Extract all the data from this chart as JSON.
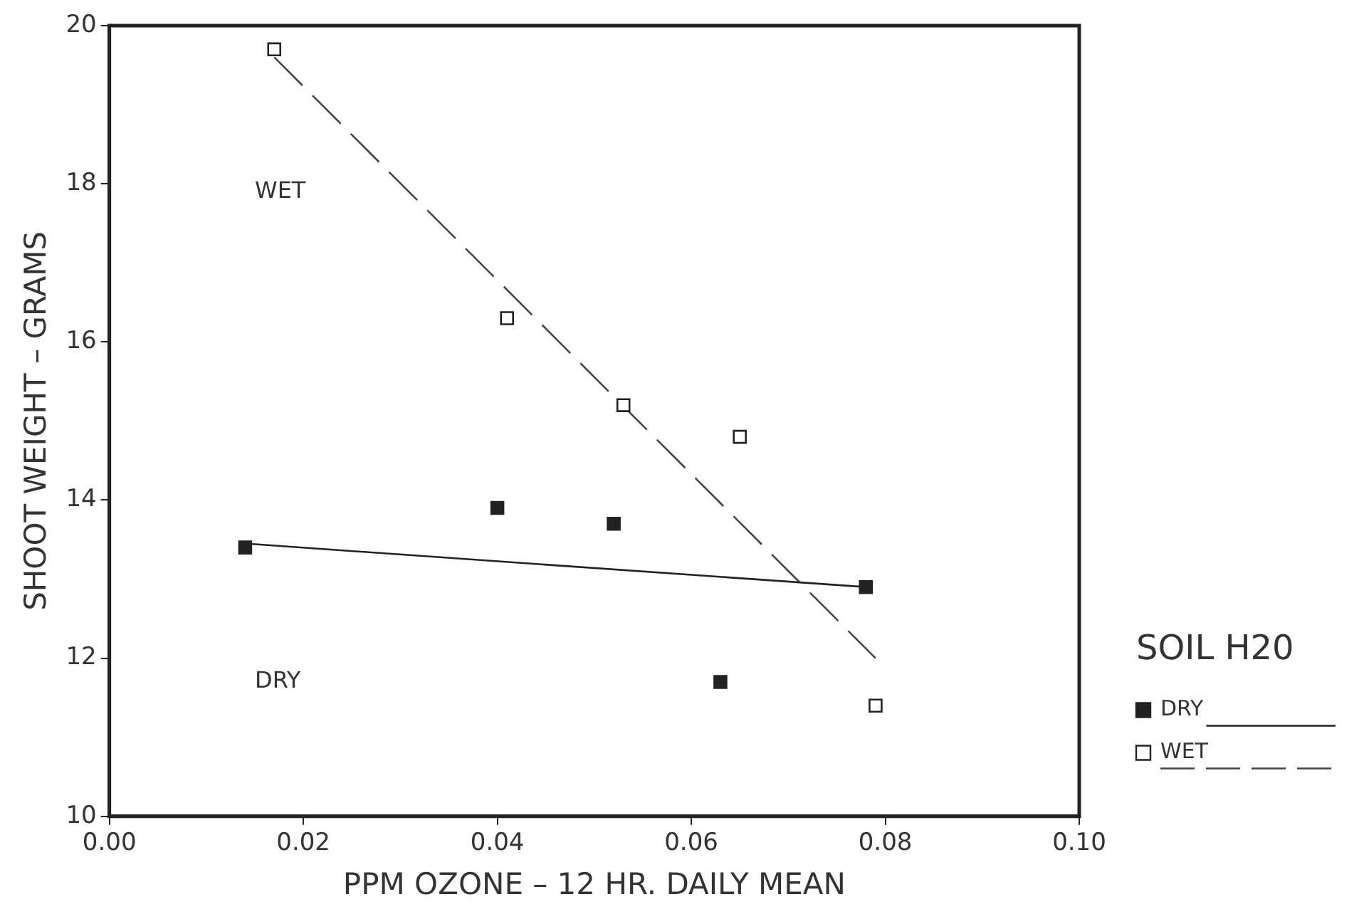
{
  "chart_data": {
    "type": "scatter",
    "xlabel": "PPM OZONE – 12 HR. DAILY MEAN",
    "ylabel": "SHOOT WEIGHT – GRAMS",
    "legend_title": "SOIL H20",
    "legend": "right",
    "grid": false,
    "marker": "square",
    "xlim": [
      0,
      0.1
    ],
    "xticks": [
      {
        "value": 0,
        "label": "0.00"
      },
      {
        "value": 0.02,
        "label": "0.02"
      },
      {
        "value": 0.04,
        "label": "0.04"
      },
      {
        "value": 0.06,
        "label": "0.06"
      },
      {
        "value": 0.08,
        "label": "0.08"
      },
      {
        "value": 0.1,
        "label": "0.10"
      }
    ],
    "ylim": [
      10,
      20
    ],
    "yticks": [
      10,
      12,
      14,
      16,
      18,
      20
    ],
    "series": [
      {
        "name": "DRY",
        "color": "#222222",
        "x": [
          0.014,
          0.04,
          0.052,
          0.063,
          0.078
        ],
        "values": [
          13.4,
          13.9,
          13.7,
          11.7,
          12.9
        ]
      },
      {
        "name": "WET",
        "color": "#ffffff",
        "x": [
          0.017,
          0.041,
          0.053,
          0.065,
          0.079
        ],
        "values": [
          19.7,
          16.3,
          15.2,
          14.8,
          11.4
        ]
      },
      {
        "type": "line",
        "color": "#222222",
        "line_style": "solid",
        "marker": "none",
        "x": [
          0.014,
          0.078
        ],
        "values": [
          13.45,
          12.9
        ]
      },
      {
        "type": "line",
        "color": "#444444",
        "line_style": "dashed",
        "marker": "none",
        "x": [
          0.017,
          0.079
        ],
        "values": [
          19.6,
          12.0
        ]
      }
    ],
    "annotations": [
      "WET",
      "DRY"
    ]
  }
}
